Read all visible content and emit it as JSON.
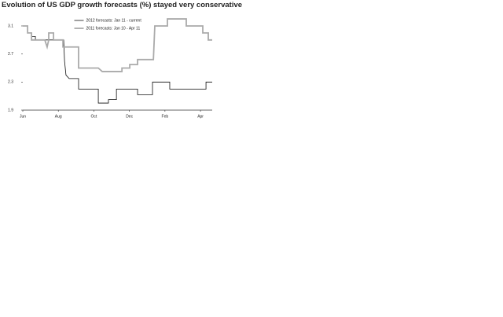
{
  "chart_data": {
    "type": "line",
    "title": "Evolution of US GDP growth forecasts (%) stayed very conservative",
    "xlim": [
      0,
      10.66
    ],
    "ylim": [
      1.9,
      3.25
    ],
    "xticks": [
      {
        "value": 0,
        "label": "Jun"
      },
      {
        "value": 2,
        "label": "Aug"
      },
      {
        "value": 4,
        "label": "Oct"
      },
      {
        "value": 6,
        "label": "Dec"
      },
      {
        "value": 8,
        "label": "Feb"
      },
      {
        "value": 10,
        "label": "Apr"
      }
    ],
    "yticks": [
      1.9,
      2.3,
      2.7,
      3.1
    ],
    "legend": "upper center",
    "series": [
      {
        "name": "2012 forecasts: Jan 11 - current",
        "color": "#111111",
        "x": [
          0,
          0.27,
          0.27,
          0.49,
          0.49,
          0.71,
          0.71,
          2.3,
          2.35,
          2.43,
          2.61,
          3.14,
          3.14,
          4.25,
          4.25,
          4.82,
          4.82,
          5.27,
          5.27,
          6.46,
          6.46,
          7.3,
          7.3,
          8.27,
          8.27,
          10.31,
          10.31,
          10.66
        ],
        "values": [
          3.1,
          3.1,
          3.0,
          3.0,
          2.95,
          2.95,
          2.9,
          2.9,
          2.6,
          2.4,
          2.35,
          2.35,
          2.2,
          2.2,
          2.0,
          2.0,
          2.05,
          2.05,
          2.2,
          2.2,
          2.12,
          2.12,
          2.3,
          2.3,
          2.2,
          2.2,
          2.3,
          2.3
        ]
      },
      {
        "name": "2011 forecasts: Jan 10 - Apr 11",
        "color": "#aaaaaa",
        "x": [
          0,
          0.27,
          0.27,
          0.49,
          0.49,
          1.24,
          1.37,
          1.46,
          1.46,
          1.73,
          1.73,
          2.26,
          2.26,
          3.14,
          3.14,
          4.25,
          4.47,
          5.58,
          5.58,
          6.02,
          6.02,
          6.46,
          6.46,
          7.35,
          7.43,
          8.14,
          8.14,
          9.2,
          9.2,
          10.13,
          10.13,
          10.44,
          10.44,
          10.66
        ],
        "values": [
          3.1,
          3.1,
          3.0,
          3.0,
          2.9,
          2.9,
          2.8,
          2.9,
          3.0,
          3.0,
          2.9,
          2.9,
          2.8,
          2.8,
          2.5,
          2.5,
          2.45,
          2.45,
          2.5,
          2.5,
          2.55,
          2.55,
          2.62,
          2.62,
          3.1,
          3.1,
          3.2,
          3.2,
          3.1,
          3.1,
          3.0,
          3.0,
          2.9,
          2.9
        ]
      }
    ]
  }
}
